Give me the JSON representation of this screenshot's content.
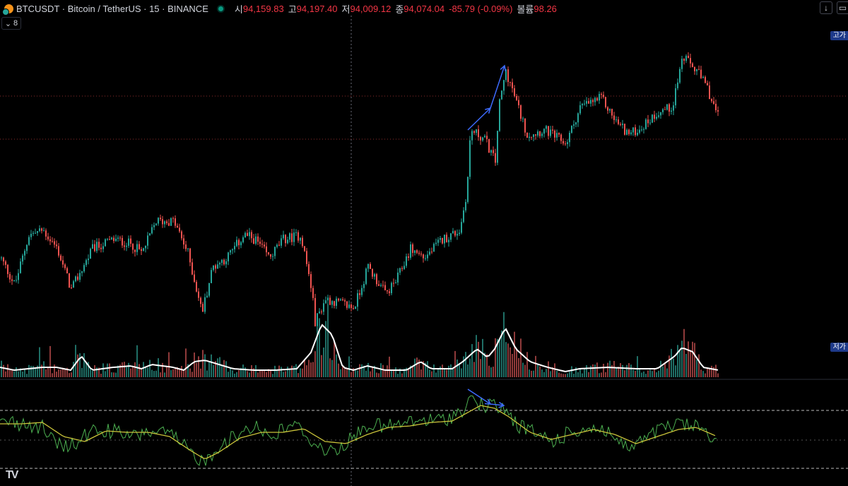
{
  "legend": {
    "title": "BTCUSDT · Bitcoin / TetherUS · 15 · BINANCE",
    "open_label": "시",
    "open": "94,159.83",
    "high_label": "고",
    "high": "94,197.40",
    "low_label": "저",
    "low": "94,009.12",
    "close_label": "종",
    "close": "94,074.04",
    "change": "-85.79 (-0.09%)",
    "volume_label": "볼륨",
    "volume": "98.26",
    "indicator_count": "8"
  },
  "price_tags": {
    "high_tag": "고가",
    "low_tag": "저가"
  },
  "toolbar": {
    "scroll_icon": "arrow-down-icon",
    "fullscreen_icon": "rect-icon"
  },
  "colors": {
    "up": "#26a69a",
    "down": "#ef5350",
    "volume_ma": "#ffffff",
    "osc_line": "#4caf50",
    "osc_signal": "#c9c33a",
    "arrow": "#3d6bff"
  },
  "chart_data": {
    "type": "candlestick",
    "symbol": "BTCUSDT",
    "interval": "15",
    "price_waypoints": [
      [
        0,
        92600
      ],
      [
        20,
        92300
      ],
      [
        40,
        92850
      ],
      [
        60,
        92900
      ],
      [
        80,
        92700
      ],
      [
        100,
        92250
      ],
      [
        130,
        92700
      ],
      [
        160,
        92800
      ],
      [
        185,
        92750
      ],
      [
        200,
        92650
      ],
      [
        220,
        93000
      ],
      [
        245,
        93000
      ],
      [
        265,
        92650
      ],
      [
        285,
        92000
      ],
      [
        300,
        92500
      ],
      [
        320,
        92600
      ],
      [
        345,
        92850
      ],
      [
        360,
        92800
      ],
      [
        380,
        92600
      ],
      [
        400,
        92800
      ],
      [
        425,
        92850
      ],
      [
        440,
        92250
      ],
      [
        445,
        91900
      ],
      [
        460,
        92150
      ],
      [
        480,
        92100
      ],
      [
        500,
        92050
      ],
      [
        520,
        92500
      ],
      [
        545,
        92200
      ],
      [
        560,
        92350
      ],
      [
        580,
        92700
      ],
      [
        600,
        92600
      ],
      [
        625,
        92800
      ],
      [
        650,
        92900
      ],
      [
        660,
        93350
      ],
      [
        665,
        94000
      ],
      [
        685,
        93900
      ],
      [
        700,
        93650
      ],
      [
        705,
        94250
      ],
      [
        715,
        94650
      ],
      [
        730,
        94300
      ],
      [
        745,
        93950
      ],
      [
        770,
        94000
      ],
      [
        800,
        93850
      ],
      [
        820,
        94250
      ],
      [
        850,
        94350
      ],
      [
        870,
        94100
      ],
      [
        890,
        93950
      ],
      [
        910,
        94050
      ],
      [
        930,
        94200
      ],
      [
        950,
        94250
      ],
      [
        965,
        94800
      ],
      [
        985,
        94650
      ],
      [
        1000,
        94450
      ],
      [
        1015,
        94150
      ]
    ],
    "volume_ma_waypoints": [
      [
        0,
        14
      ],
      [
        20,
        10
      ],
      [
        40,
        12
      ],
      [
        60,
        14
      ],
      [
        80,
        14
      ],
      [
        100,
        10
      ],
      [
        115,
        30
      ],
      [
        130,
        10
      ],
      [
        160,
        14
      ],
      [
        185,
        16
      ],
      [
        200,
        12
      ],
      [
        215,
        18
      ],
      [
        245,
        14
      ],
      [
        260,
        10
      ],
      [
        275,
        22
      ],
      [
        290,
        24
      ],
      [
        310,
        18
      ],
      [
        330,
        12
      ],
      [
        360,
        10
      ],
      [
        390,
        10
      ],
      [
        420,
        12
      ],
      [
        440,
        35
      ],
      [
        455,
        75
      ],
      [
        470,
        60
      ],
      [
        485,
        14
      ],
      [
        500,
        10
      ],
      [
        520,
        16
      ],
      [
        545,
        10
      ],
      [
        575,
        10
      ],
      [
        595,
        22
      ],
      [
        610,
        12
      ],
      [
        640,
        12
      ],
      [
        655,
        22
      ],
      [
        675,
        40
      ],
      [
        690,
        28
      ],
      [
        700,
        40
      ],
      [
        715,
        70
      ],
      [
        730,
        40
      ],
      [
        750,
        22
      ],
      [
        775,
        14
      ],
      [
        800,
        8
      ],
      [
        820,
        12
      ],
      [
        860,
        14
      ],
      [
        900,
        12
      ],
      [
        930,
        12
      ],
      [
        955,
        30
      ],
      [
        965,
        42
      ],
      [
        980,
        36
      ],
      [
        995,
        14
      ],
      [
        1017,
        10
      ]
    ],
    "oscillator_waypoints": [
      [
        0,
        595
      ],
      [
        30,
        600
      ],
      [
        60,
        605
      ],
      [
        80,
        630
      ],
      [
        100,
        632
      ],
      [
        130,
        610
      ],
      [
        160,
        610
      ],
      [
        185,
        620
      ],
      [
        210,
        610
      ],
      [
        240,
        615
      ],
      [
        270,
        640
      ],
      [
        290,
        655
      ],
      [
        310,
        630
      ],
      [
        330,
        620
      ],
      [
        360,
        600
      ],
      [
        385,
        620
      ],
      [
        410,
        600
      ],
      [
        430,
        610
      ],
      [
        445,
        630
      ],
      [
        470,
        640
      ],
      [
        500,
        620
      ],
      [
        520,
        600
      ],
      [
        545,
        605
      ],
      [
        570,
        600
      ],
      [
        600,
        595
      ],
      [
        625,
        595
      ],
      [
        650,
        585
      ],
      [
        665,
        565
      ],
      [
        685,
        575
      ],
      [
        700,
        575
      ],
      [
        715,
        580
      ],
      [
        730,
        600
      ],
      [
        760,
        615
      ],
      [
        785,
        625
      ],
      [
        810,
        610
      ],
      [
        840,
        605
      ],
      [
        860,
        610
      ],
      [
        885,
        635
      ],
      [
        910,
        625
      ],
      [
        930,
        610
      ],
      [
        945,
        605
      ],
      [
        965,
        600
      ],
      [
        985,
        605
      ],
      [
        1000,
        610
      ],
      [
        1015,
        625
      ]
    ],
    "signal_waypoints": [
      [
        0,
        600
      ],
      [
        30,
        600
      ],
      [
        60,
        598
      ],
      [
        90,
        618
      ],
      [
        120,
        625
      ],
      [
        150,
        610
      ],
      [
        180,
        612
      ],
      [
        210,
        612
      ],
      [
        240,
        618
      ],
      [
        270,
        638
      ],
      [
        290,
        650
      ],
      [
        310,
        640
      ],
      [
        340,
        620
      ],
      [
        370,
        612
      ],
      [
        400,
        612
      ],
      [
        430,
        607
      ],
      [
        460,
        625
      ],
      [
        490,
        628
      ],
      [
        520,
        615
      ],
      [
        550,
        605
      ],
      [
        580,
        603
      ],
      [
        610,
        598
      ],
      [
        640,
        596
      ],
      [
        660,
        585
      ],
      [
        680,
        574
      ],
      [
        700,
        578
      ],
      [
        720,
        590
      ],
      [
        750,
        612
      ],
      [
        780,
        622
      ],
      [
        810,
        615
      ],
      [
        840,
        608
      ],
      [
        870,
        615
      ],
      [
        900,
        628
      ],
      [
        930,
        618
      ],
      [
        960,
        608
      ],
      [
        985,
        605
      ],
      [
        1015,
        618
      ]
    ],
    "oscillator_levels": [
      581,
      623,
      663
    ]
  }
}
